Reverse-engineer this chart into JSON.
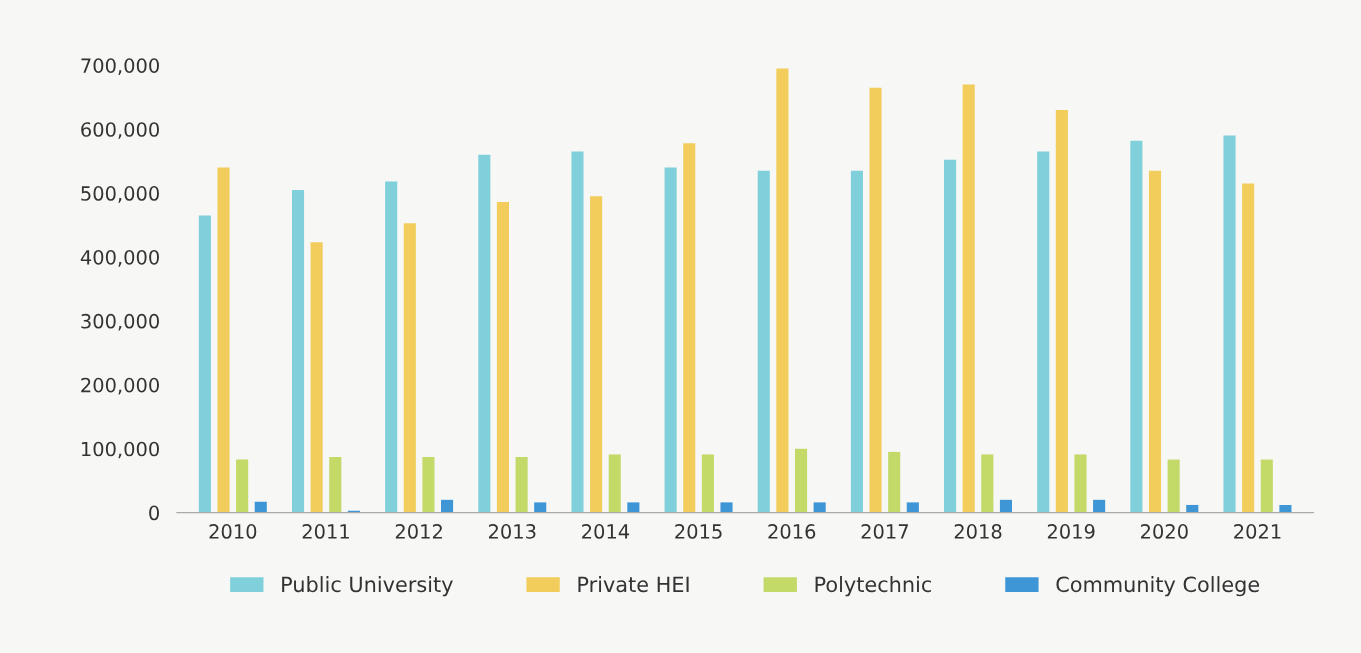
{
  "chart_data": {
    "type": "bar",
    "categories": [
      "2010",
      "2011",
      "2012",
      "2013",
      "2014",
      "2015",
      "2016",
      "2017",
      "2018",
      "2019",
      "2020",
      "2021"
    ],
    "series": [
      {
        "name": "Public University",
        "color": "#7fd0da",
        "values": [
          465000,
          505000,
          518000,
          560000,
          565000,
          540000,
          535000,
          535000,
          552000,
          565000,
          582000,
          590000
        ]
      },
      {
        "name": "Private HEI",
        "color": "#f2cd5c",
        "values": [
          540000,
          423000,
          453000,
          486000,
          495000,
          578000,
          695000,
          665000,
          670000,
          630000,
          535000,
          515000
        ]
      },
      {
        "name": "Polytechnic",
        "color": "#c3d968",
        "values": [
          83000,
          87000,
          87000,
          87000,
          91000,
          91000,
          100000,
          95000,
          91000,
          91000,
          83000,
          83000
        ]
      },
      {
        "name": "Community College",
        "color": "#3e96d6",
        "values": [
          17000,
          3000,
          20000,
          16000,
          16000,
          16000,
          16000,
          16000,
          20000,
          20000,
          12000,
          12000
        ]
      }
    ],
    "ylim": [
      0,
      700000
    ],
    "yticks": [
      {
        "value": 0,
        "label": "0"
      },
      {
        "value": 100000,
        "label": "100,000"
      },
      {
        "value": 200000,
        "label": "200,000"
      },
      {
        "value": 300000,
        "label": "300,000"
      },
      {
        "value": 400000,
        "label": "400,000"
      },
      {
        "value": 500000,
        "label": "500,000"
      },
      {
        "value": 600000,
        "label": "600,000"
      },
      {
        "value": 700000,
        "label": "700,000"
      }
    ],
    "grid": false,
    "legend": "bottom"
  }
}
